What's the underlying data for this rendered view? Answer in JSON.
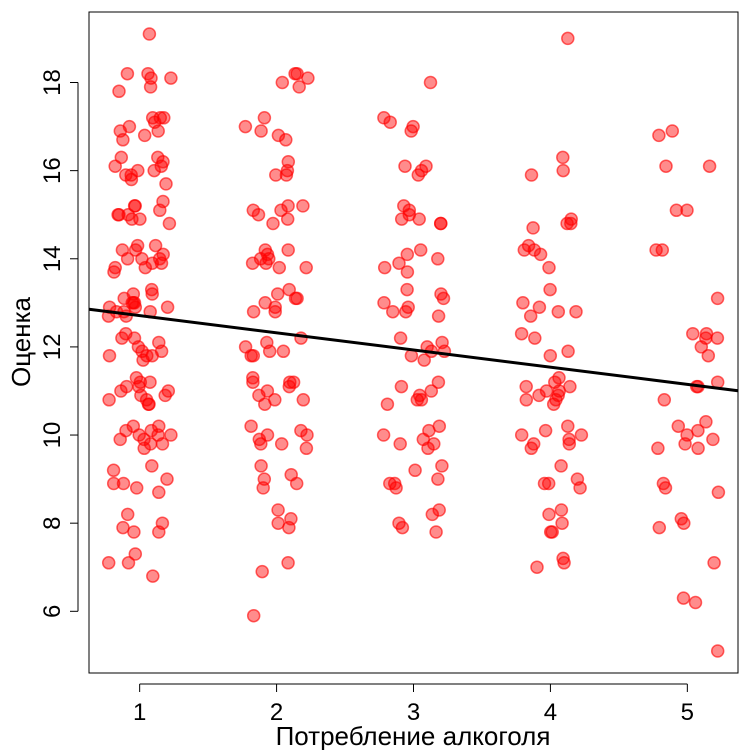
{
  "chart_data": {
    "type": "scatter",
    "title": "",
    "xlabel": "Потребление алкоголя",
    "ylabel": "Оценка",
    "xlim": [
      0.63,
      5.37
    ],
    "ylim": [
      4.6,
      19.6
    ],
    "x_ticks": [
      1,
      2,
      3,
      4,
      5
    ],
    "x_tick_labels": [
      "1",
      "2",
      "3",
      "4",
      "5"
    ],
    "y_ticks": [
      6,
      8,
      10,
      12,
      14,
      16,
      18
    ],
    "y_tick_labels": [
      "6",
      "8",
      "10",
      "12",
      "14",
      "16",
      "18"
    ],
    "point_color": "#ff0000",
    "line_color": "#000000",
    "grid": false,
    "jitter": "horizontal (x values jittered around integer categories)",
    "regression_line": {
      "slope": -0.39,
      "intercept": 13.1
    },
    "point_groups": [
      {
        "x": 1,
        "y": [
          19.1,
          18.2,
          18.2,
          18.1,
          18.1,
          17.9,
          17.8,
          17.2,
          17.2,
          17.2,
          17.1,
          17.0,
          16.9,
          16.9,
          16.8,
          16.7,
          16.3,
          16.3,
          16.2,
          16.1,
          16.1,
          16.0,
          16.0,
          15.9,
          15.9,
          15.8,
          15.7,
          15.3,
          15.2,
          15.2,
          15.1,
          15.0,
          15.0,
          15.0,
          14.9,
          14.9,
          14.8,
          14.3,
          14.3,
          14.2,
          14.2,
          14.1,
          14.0,
          14.0,
          14.0,
          13.9,
          13.9,
          13.8,
          13.8,
          13.7,
          13.3,
          13.2,
          13.2,
          13.1,
          13.0,
          13.0,
          13.0,
          12.9,
          12.9,
          12.9,
          12.8,
          12.8,
          12.8,
          12.7,
          12.7,
          12.3,
          12.2,
          12.2,
          12.1,
          12.0,
          11.9,
          11.9,
          11.8,
          11.8,
          11.8,
          11.7,
          11.3,
          11.2,
          11.2,
          11.1,
          11.1,
          11.0,
          11.0,
          10.9,
          10.9,
          10.8,
          10.8,
          10.7,
          10.7,
          10.2,
          10.2,
          10.1,
          10.1,
          10.0,
          10.0,
          10.0,
          9.9,
          9.9,
          9.8,
          9.8,
          9.7,
          9.3,
          9.2,
          9.0,
          8.9,
          8.9,
          8.8,
          8.7,
          8.2,
          8.0,
          7.9,
          7.8,
          7.8,
          7.3,
          7.1,
          7.1,
          6.8
        ]
      },
      {
        "x": 2,
        "y": [
          18.2,
          18.2,
          18.1,
          18.0,
          17.9,
          17.2,
          17.0,
          16.9,
          16.8,
          16.7,
          16.2,
          16.0,
          15.9,
          15.9,
          15.2,
          15.2,
          15.1,
          15.1,
          15.0,
          14.9,
          14.8,
          14.2,
          14.2,
          14.1,
          14.0,
          14.0,
          13.9,
          13.9,
          13.8,
          13.8,
          13.3,
          13.2,
          13.1,
          13.1,
          13.0,
          12.9,
          12.8,
          12.8,
          12.2,
          12.1,
          12.0,
          11.9,
          11.9,
          11.8,
          11.8,
          11.3,
          11.2,
          11.2,
          11.2,
          11.1,
          11.0,
          10.9,
          10.8,
          10.8,
          10.7,
          10.2,
          10.1,
          10.0,
          10.0,
          9.9,
          9.8,
          9.8,
          9.7,
          9.3,
          9.1,
          9.0,
          8.9,
          8.8,
          8.3,
          8.1,
          8.0,
          7.9,
          7.1,
          6.9,
          5.9
        ]
      },
      {
        "x": 3,
        "y": [
          18.0,
          17.2,
          17.1,
          17.0,
          16.9,
          16.1,
          16.1,
          16.0,
          15.9,
          15.2,
          15.1,
          15.0,
          14.9,
          14.9,
          14.8,
          14.8,
          14.2,
          14.1,
          14.0,
          13.9,
          13.8,
          13.7,
          13.3,
          13.2,
          13.1,
          13.0,
          12.9,
          12.8,
          12.8,
          12.7,
          12.2,
          12.1,
          12.0,
          11.9,
          11.9,
          11.8,
          11.7,
          11.2,
          11.1,
          11.0,
          10.9,
          10.8,
          10.8,
          10.7,
          10.2,
          10.1,
          10.0,
          9.9,
          9.8,
          9.8,
          9.7,
          9.3,
          9.2,
          9.0,
          8.9,
          8.9,
          8.8,
          8.3,
          8.2,
          8.0,
          7.9,
          7.8
        ]
      },
      {
        "x": 4,
        "y": [
          19.0,
          16.3,
          16.0,
          15.9,
          14.9,
          14.8,
          14.8,
          14.7,
          14.3,
          14.2,
          14.2,
          14.1,
          13.8,
          13.3,
          13.0,
          12.9,
          12.8,
          12.8,
          12.7,
          12.3,
          12.2,
          11.9,
          11.8,
          11.3,
          11.2,
          11.1,
          11.1,
          11.0,
          11.0,
          10.9,
          10.9,
          10.8,
          10.8,
          10.7,
          10.2,
          10.1,
          10.0,
          10.0,
          9.9,
          9.8,
          9.8,
          9.7,
          9.3,
          9.0,
          8.9,
          8.9,
          8.8,
          8.3,
          8.2,
          8.0,
          7.8,
          7.8,
          7.2,
          7.1,
          7.0
        ]
      },
      {
        "x": 5,
        "y": [
          16.9,
          16.8,
          16.1,
          16.1,
          15.1,
          15.1,
          14.2,
          14.2,
          13.1,
          12.3,
          12.3,
          12.2,
          12.2,
          12.0,
          11.8,
          11.2,
          11.1,
          11.1,
          10.8,
          10.3,
          10.2,
          10.1,
          10.0,
          9.9,
          9.8,
          9.7,
          9.7,
          8.9,
          8.8,
          8.7,
          8.1,
          8.0,
          7.9,
          7.1,
          6.3,
          6.2,
          5.1
        ]
      }
    ]
  }
}
